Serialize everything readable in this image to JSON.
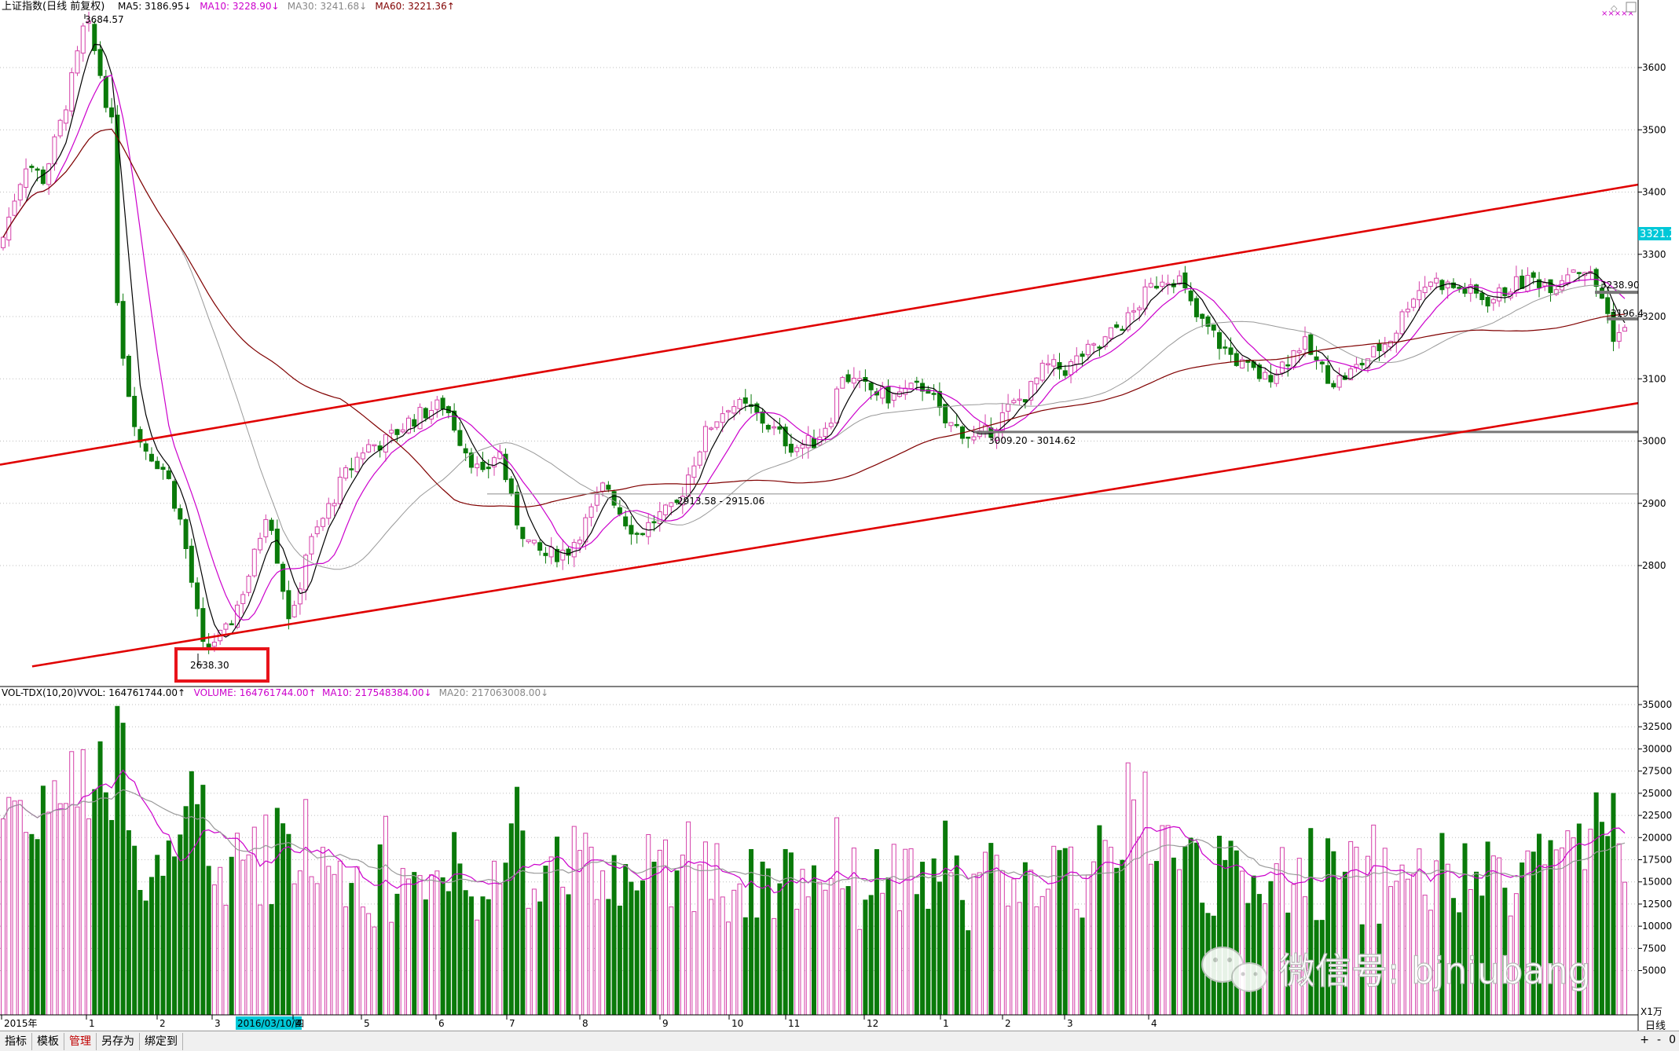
{
  "chart_data": [
    {
      "type": "candlestick",
      "title": "上证指数(日线 前复权)",
      "indicators": [
        {
          "name": "MA5",
          "label": "MA5: 3186.95",
          "arrow": "↓",
          "color": "#000000"
        },
        {
          "name": "MA10",
          "label": "MA10: 3228.90",
          "arrow": "↓",
          "color": "#cc00cc"
        },
        {
          "name": "MA30",
          "label": "MA30: 3241.68",
          "arrow": "↓",
          "color": "#888888"
        },
        {
          "name": "MA60",
          "label": "MA60: 3221.36",
          "arrow": "↑",
          "color": "#800000"
        }
      ],
      "ylim": [
        2600,
        3720
      ],
      "yticks": [
        "3600",
        "3500",
        "3400",
        "3300",
        "3200",
        "3100",
        "3000",
        "2900",
        "2800"
      ],
      "price_tag": "3321.2",
      "annotations": {
        "high": "3684.57",
        "low": "2638.30",
        "band1": "2913.58 - 2915.06",
        "band2": "3009.20 - 3014.62",
        "right1": "3238.90",
        "right2": "3196.4"
      },
      "reference_lines": [
        2915.06,
        3014.62
      ],
      "channel_upper": [
        [
          0,
          2962
        ],
        [
          1528,
          3412
        ]
      ],
      "channel_lower": [
        [
          30,
          2638
        ],
        [
          1528,
          3061
        ]
      ],
      "control_points": [
        [
          0,
          3310
        ],
        [
          15,
          3400
        ],
        [
          25,
          3450
        ],
        [
          40,
          3420
        ],
        [
          55,
          3500
        ],
        [
          70,
          3600
        ],
        [
          80,
          3680
        ],
        [
          95,
          3580
        ],
        [
          105,
          3500
        ],
        [
          110,
          3200
        ],
        [
          120,
          3080
        ],
        [
          130,
          3000
        ],
        [
          140,
          2980
        ],
        [
          155,
          2950
        ],
        [
          170,
          2860
        ],
        [
          180,
          2760
        ],
        [
          190,
          2660
        ],
        [
          200,
          2680
        ],
        [
          210,
          2690
        ],
        [
          220,
          2730
        ],
        [
          235,
          2800
        ],
        [
          250,
          2900
        ],
        [
          262,
          2780
        ],
        [
          272,
          2700
        ],
        [
          285,
          2820
        ],
        [
          300,
          2870
        ],
        [
          320,
          2940
        ],
        [
          340,
          2990
        ],
        [
          360,
          3000
        ],
        [
          380,
          3030
        ],
        [
          400,
          3050
        ],
        [
          415,
          3060
        ],
        [
          430,
          3000
        ],
        [
          450,
          2940
        ],
        [
          465,
          2990
        ],
        [
          480,
          2880
        ],
        [
          495,
          2830
        ],
        [
          510,
          2815
        ],
        [
          530,
          2825
        ],
        [
          550,
          2880
        ],
        [
          565,
          2935
        ],
        [
          580,
          2880
        ],
        [
          595,
          2850
        ],
        [
          615,
          2880
        ],
        [
          630,
          2890
        ],
        [
          645,
          2960
        ],
        [
          660,
          3020
        ],
        [
          680,
          3060
        ],
        [
          700,
          3050
        ],
        [
          720,
          3020
        ],
        [
          740,
          2990
        ],
        [
          760,
          3000
        ],
        [
          775,
          3040
        ],
        [
          785,
          3110
        ],
        [
          800,
          3090
        ],
        [
          815,
          3080
        ],
        [
          830,
          3070
        ],
        [
          845,
          3080
        ],
        [
          865,
          3090
        ],
        [
          880,
          3030
        ],
        [
          895,
          3020
        ],
        [
          910,
          3000
        ],
        [
          925,
          3020
        ],
        [
          940,
          3050
        ],
        [
          960,
          3080
        ],
        [
          975,
          3120
        ],
        [
          995,
          3115
        ],
        [
          1010,
          3140
        ],
        [
          1025,
          3150
        ],
        [
          1040,
          3180
        ],
        [
          1055,
          3200
        ],
        [
          1070,
          3240
        ],
        [
          1085,
          3265
        ],
        [
          1100,
          3260
        ],
        [
          1115,
          3200
        ],
        [
          1130,
          3175
        ],
        [
          1140,
          3150
        ],
        [
          1160,
          3120
        ],
        [
          1180,
          3100
        ],
        [
          1200,
          3130
        ],
        [
          1215,
          3160
        ],
        [
          1230,
          3120
        ],
        [
          1245,
          3095
        ],
        [
          1260,
          3110
        ],
        [
          1280,
          3140
        ],
        [
          1300,
          3170
        ],
        [
          1315,
          3230
        ],
        [
          1335,
          3260
        ],
        [
          1350,
          3250
        ],
        [
          1370,
          3240
        ],
        [
          1390,
          3225
        ],
        [
          1410,
          3250
        ],
        [
          1430,
          3260
        ],
        [
          1450,
          3250
        ],
        [
          1465,
          3280
        ],
        [
          1480,
          3275
        ],
        [
          1495,
          3230
        ],
        [
          1505,
          3170
        ],
        [
          1512,
          3175
        ]
      ],
      "candle_count": 285,
      "x_labels": [
        {
          "text": "2015年",
          "x": 2
        },
        {
          "text": "1",
          "x": 110
        },
        {
          "text": "2",
          "x": 200
        },
        {
          "text": "3",
          "x": 270
        },
        {
          "text": "2016/03/10/四",
          "x": 300,
          "highlight": true
        },
        {
          "text": "4",
          "x": 373
        },
        {
          "text": "5",
          "x": 460
        },
        {
          "text": "6",
          "x": 555
        },
        {
          "text": "7",
          "x": 645
        },
        {
          "text": "8",
          "x": 738
        },
        {
          "text": "9",
          "x": 840
        },
        {
          "text": "10",
          "x": 928
        },
        {
          "text": "11",
          "x": 1000
        },
        {
          "text": "12",
          "x": 1100
        },
        {
          "text": "1",
          "x": 1197
        },
        {
          "text": "2",
          "x": 1276
        },
        {
          "text": "3",
          "x": 1355
        },
        {
          "text": "4",
          "x": 1462
        }
      ],
      "bottom_right_label": "日线"
    },
    {
      "type": "bar",
      "title": "VOL-TDX(10,20)",
      "indicators": [
        {
          "name": "VVOL",
          "label": "VVOL: 164761744.00",
          "arrow": "↑",
          "color": "#000000"
        },
        {
          "name": "VOLUME",
          "label": "VOLUME: 164761744.00",
          "arrow": "↑",
          "color": "#cc00cc"
        },
        {
          "name": "MA10",
          "label": "MA10: 217548384.00",
          "arrow": "↓",
          "color": "#cc00cc"
        },
        {
          "name": "MA20",
          "label": "MA20: 217063008.00",
          "arrow": "↓",
          "color": "#888888"
        }
      ],
      "ylim": [
        0,
        36500
      ],
      "yticks": [
        "35000",
        "32500",
        "30000",
        "27500",
        "25000",
        "22500",
        "20000",
        "17500",
        "15000",
        "12500",
        "10000",
        "7500",
        "5000"
      ],
      "unit": "X1万"
    }
  ],
  "bottom_tabs": [
    {
      "label": "指标",
      "active": false
    },
    {
      "label": "模板",
      "active": false
    },
    {
      "label": "管理",
      "active": true
    },
    {
      "label": "另存为",
      "active": false
    },
    {
      "label": "绑定到",
      "active": false
    }
  ],
  "bottom_right": {
    "plus": "+",
    "minus": "-",
    "zero": "0"
  },
  "watermark": "微信号: bjniubang",
  "colors": {
    "up": "#d43fa8",
    "down": "#0a7a0a",
    "channel": "#e00000",
    "axis": "#000000",
    "grid": "#bdbdbd"
  }
}
